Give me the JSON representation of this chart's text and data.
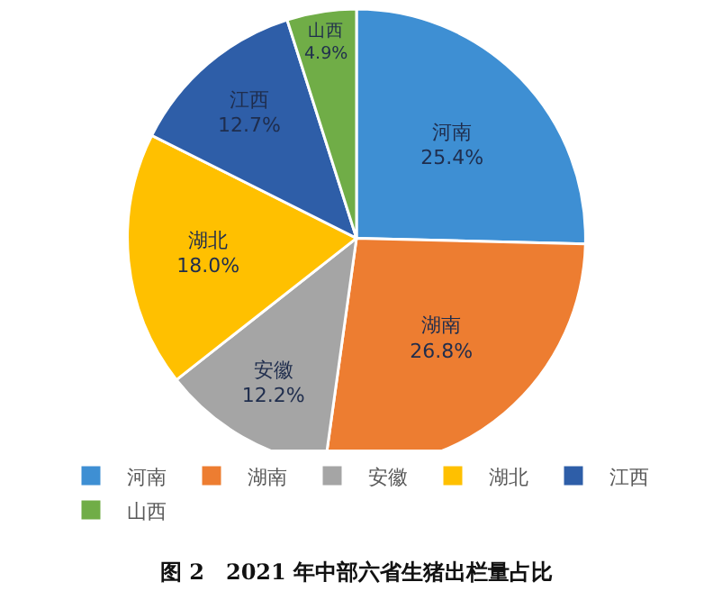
{
  "chart_data": {
    "type": "pie",
    "title": "图 2　2021 年中部六省生猪出栏量占比",
    "categories": [
      "河南",
      "湖南",
      "安徽",
      "湖北",
      "江西",
      "山西"
    ],
    "values": [
      25.4,
      26.8,
      12.2,
      18.0,
      12.7,
      4.9
    ],
    "value_labels": [
      "25.4%",
      "26.8%",
      "12.2%",
      "18.0%",
      "12.7%",
      "4.9%"
    ],
    "colors": [
      "#3e8fd3",
      "#ed7d31",
      "#a5a5a5",
      "#ffc000",
      "#2e5ea8",
      "#70ad47"
    ],
    "legend": "bottom"
  }
}
